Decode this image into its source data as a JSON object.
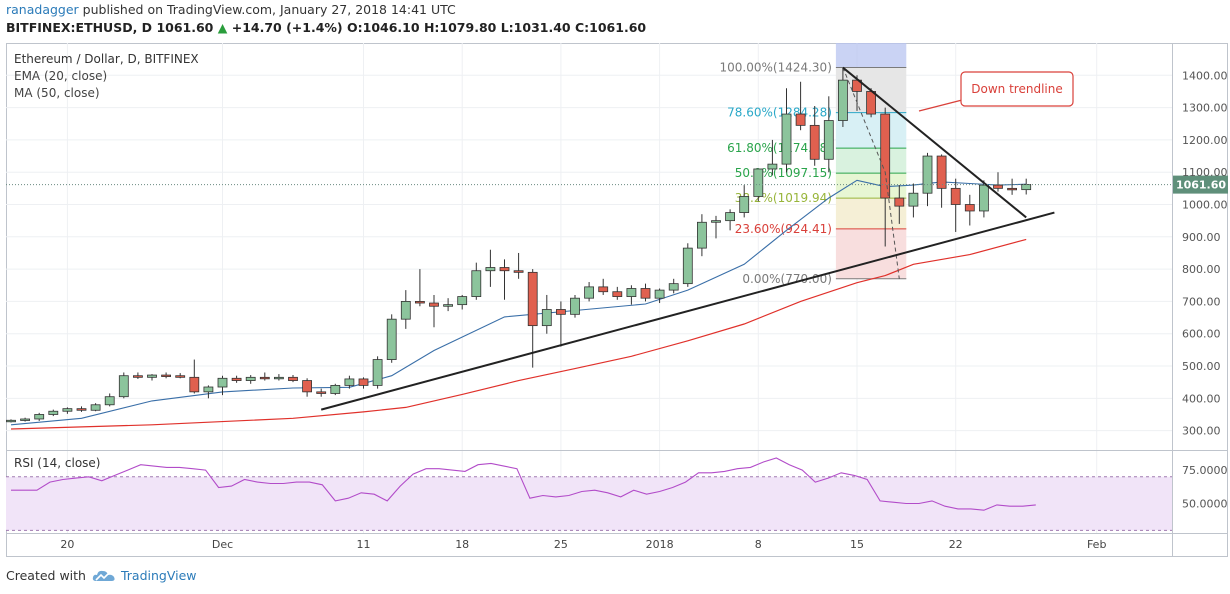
{
  "header": {
    "author": "ranadagger",
    "published": "published on TradingView.com, January 27, 2018 14:41 UTC"
  },
  "ohlc": {
    "symbol": "BITFINEX:ETHUSD, D",
    "price": "1061.60",
    "change_arrow": "▲",
    "change": "+14.70 (+1.4%)",
    "o_label": "O:",
    "o": "1046.10",
    "h_label": "H:",
    "h": "1079.80",
    "l_label": "L:",
    "l": "1031.40",
    "c_label": "C:",
    "c": "1061.60"
  },
  "footer": {
    "created_with": "Created with",
    "brand": "TradingView",
    "logo_icon": "cloud-logo-icon"
  },
  "chart_data": [
    {
      "type": "candlestick",
      "title": "Ethereum / Dollar, D, BITFINEX",
      "indicators": [
        "EMA (20, close)",
        "MA (50, close)"
      ],
      "ylim": [
        240,
        1500
      ],
      "y_ticks": [
        1400,
        1300,
        1200,
        1100,
        1000,
        900,
        800,
        700,
        600,
        500,
        400,
        300
      ],
      "y_tick_labels": [
        "1400.00",
        "1300.00",
        "1200.00",
        "1100.00",
        "1000.00",
        "900.00",
        "800.00",
        "700.00",
        "600.00",
        "500.00",
        "400.00",
        "300.00"
      ],
      "x_tick_labels": [
        {
          "label": "20",
          "day": 4
        },
        {
          "label": "Dec",
          "day": 15
        },
        {
          "label": "11",
          "day": 25
        },
        {
          "label": "18",
          "day": 32
        },
        {
          "label": "25",
          "day": 39
        },
        {
          "label": "2018",
          "day": 46
        },
        {
          "label": "8",
          "day": 53
        },
        {
          "label": "15",
          "day": 60
        },
        {
          "label": "22",
          "day": 67
        },
        {
          "label": "Feb",
          "day": 77
        }
      ],
      "last_price_label": "1061.60",
      "last_price": 1061.6,
      "candles": [
        {
          "o": 330,
          "h": 335,
          "l": 325,
          "c": 332
        },
        {
          "o": 332,
          "h": 340,
          "l": 328,
          "c": 336
        },
        {
          "o": 336,
          "h": 355,
          "l": 330,
          "c": 350
        },
        {
          "o": 350,
          "h": 365,
          "l": 345,
          "c": 360
        },
        {
          "o": 360,
          "h": 372,
          "l": 352,
          "c": 368
        },
        {
          "o": 368,
          "h": 375,
          "l": 358,
          "c": 363
        },
        {
          "o": 363,
          "h": 385,
          "l": 360,
          "c": 380
        },
        {
          "o": 380,
          "h": 415,
          "l": 375,
          "c": 405
        },
        {
          "o": 405,
          "h": 480,
          "l": 400,
          "c": 470
        },
        {
          "o": 470,
          "h": 480,
          "l": 460,
          "c": 465
        },
        {
          "o": 465,
          "h": 475,
          "l": 455,
          "c": 472
        },
        {
          "o": 472,
          "h": 480,
          "l": 462,
          "c": 470
        },
        {
          "o": 470,
          "h": 478,
          "l": 462,
          "c": 465
        },
        {
          "o": 465,
          "h": 520,
          "l": 415,
          "c": 420
        },
        {
          "o": 420,
          "h": 440,
          "l": 400,
          "c": 435
        },
        {
          "o": 435,
          "h": 470,
          "l": 410,
          "c": 462
        },
        {
          "o": 462,
          "h": 470,
          "l": 448,
          "c": 455
        },
        {
          "o": 455,
          "h": 472,
          "l": 445,
          "c": 465
        },
        {
          "o": 465,
          "h": 480,
          "l": 455,
          "c": 463
        },
        {
          "o": 463,
          "h": 475,
          "l": 455,
          "c": 465
        },
        {
          "o": 465,
          "h": 472,
          "l": 450,
          "c": 455
        },
        {
          "o": 455,
          "h": 462,
          "l": 405,
          "c": 420
        },
        {
          "o": 420,
          "h": 430,
          "l": 405,
          "c": 415
        },
        {
          "o": 415,
          "h": 445,
          "l": 410,
          "c": 440
        },
        {
          "o": 440,
          "h": 470,
          "l": 430,
          "c": 460
        },
        {
          "o": 460,
          "h": 465,
          "l": 430,
          "c": 440
        },
        {
          "o": 440,
          "h": 530,
          "l": 430,
          "c": 520
        },
        {
          "o": 520,
          "h": 660,
          "l": 510,
          "c": 645
        },
        {
          "o": 645,
          "h": 735,
          "l": 615,
          "c": 700
        },
        {
          "o": 700,
          "h": 800,
          "l": 685,
          "c": 695
        },
        {
          "o": 695,
          "h": 720,
          "l": 620,
          "c": 685
        },
        {
          "o": 685,
          "h": 710,
          "l": 670,
          "c": 690
        },
        {
          "o": 690,
          "h": 720,
          "l": 675,
          "c": 715
        },
        {
          "o": 715,
          "h": 820,
          "l": 705,
          "c": 795
        },
        {
          "o": 795,
          "h": 860,
          "l": 745,
          "c": 805
        },
        {
          "o": 805,
          "h": 830,
          "l": 705,
          "c": 795
        },
        {
          "o": 795,
          "h": 850,
          "l": 770,
          "c": 790
        },
        {
          "o": 790,
          "h": 800,
          "l": 495,
          "c": 625
        },
        {
          "o": 625,
          "h": 720,
          "l": 600,
          "c": 675
        },
        {
          "o": 675,
          "h": 700,
          "l": 560,
          "c": 660
        },
        {
          "o": 660,
          "h": 720,
          "l": 650,
          "c": 710
        },
        {
          "o": 710,
          "h": 760,
          "l": 700,
          "c": 745
        },
        {
          "o": 745,
          "h": 770,
          "l": 720,
          "c": 730
        },
        {
          "o": 730,
          "h": 745,
          "l": 705,
          "c": 715
        },
        {
          "o": 715,
          "h": 750,
          "l": 690,
          "c": 740
        },
        {
          "o": 740,
          "h": 755,
          "l": 700,
          "c": 710
        },
        {
          "o": 710,
          "h": 740,
          "l": 695,
          "c": 735
        },
        {
          "o": 735,
          "h": 770,
          "l": 725,
          "c": 755
        },
        {
          "o": 755,
          "h": 880,
          "l": 745,
          "c": 865
        },
        {
          "o": 865,
          "h": 970,
          "l": 840,
          "c": 945
        },
        {
          "o": 945,
          "h": 965,
          "l": 895,
          "c": 950
        },
        {
          "o": 950,
          "h": 985,
          "l": 920,
          "c": 975
        },
        {
          "o": 975,
          "h": 1060,
          "l": 960,
          "c": 1025
        },
        {
          "o": 1025,
          "h": 1110,
          "l": 1010,
          "c": 1110
        },
        {
          "o": 1110,
          "h": 1200,
          "l": 1090,
          "c": 1125
        },
        {
          "o": 1125,
          "h": 1360,
          "l": 1100,
          "c": 1280
        },
        {
          "o": 1280,
          "h": 1380,
          "l": 1230,
          "c": 1245
        },
        {
          "o": 1245,
          "h": 1305,
          "l": 1120,
          "c": 1140
        },
        {
          "o": 1140,
          "h": 1335,
          "l": 1100,
          "c": 1260
        },
        {
          "o": 1260,
          "h": 1424,
          "l": 1240,
          "c": 1385
        },
        {
          "o": 1385,
          "h": 1400,
          "l": 1290,
          "c": 1350
        },
        {
          "o": 1350,
          "h": 1360,
          "l": 1270,
          "c": 1280
        },
        {
          "o": 1280,
          "h": 1300,
          "l": 870,
          "c": 1020
        },
        {
          "o": 1020,
          "h": 1060,
          "l": 940,
          "c": 995
        },
        {
          "o": 995,
          "h": 1065,
          "l": 960,
          "c": 1035
        },
        {
          "o": 1035,
          "h": 1160,
          "l": 995,
          "c": 1150
        },
        {
          "o": 1150,
          "h": 1155,
          "l": 990,
          "c": 1050
        },
        {
          "o": 1050,
          "h": 1080,
          "l": 915,
          "c": 1000
        },
        {
          "o": 1000,
          "h": 1030,
          "l": 935,
          "c": 980
        },
        {
          "o": 980,
          "h": 1075,
          "l": 960,
          "c": 1060
        },
        {
          "o": 1060,
          "h": 1100,
          "l": 1040,
          "c": 1050
        },
        {
          "o": 1050,
          "h": 1080,
          "l": 1030,
          "c": 1046
        },
        {
          "o": 1046,
          "h": 1080,
          "l": 1031,
          "c": 1062
        }
      ],
      "ema20": [
        {
          "day": 0,
          "v": 318
        },
        {
          "day": 5,
          "v": 338
        },
        {
          "day": 10,
          "v": 392
        },
        {
          "day": 15,
          "v": 420
        },
        {
          "day": 20,
          "v": 432
        },
        {
          "day": 24,
          "v": 434
        },
        {
          "day": 27,
          "v": 470
        },
        {
          "day": 30,
          "v": 548
        },
        {
          "day": 35,
          "v": 652
        },
        {
          "day": 40,
          "v": 672
        },
        {
          "day": 45,
          "v": 692
        },
        {
          "day": 48,
          "v": 735
        },
        {
          "day": 52,
          "v": 815
        },
        {
          "day": 55,
          "v": 920
        },
        {
          "day": 58,
          "v": 1020
        },
        {
          "day": 60,
          "v": 1075
        },
        {
          "day": 62,
          "v": 1055
        },
        {
          "day": 64,
          "v": 1060
        },
        {
          "day": 66,
          "v": 1070
        },
        {
          "day": 68,
          "v": 1065
        },
        {
          "day": 70,
          "v": 1060
        },
        {
          "day": 72,
          "v": 1063
        }
      ],
      "ma50": [
        {
          "day": 0,
          "v": 305
        },
        {
          "day": 10,
          "v": 318
        },
        {
          "day": 20,
          "v": 338
        },
        {
          "day": 25,
          "v": 358
        },
        {
          "day": 28,
          "v": 372
        },
        {
          "day": 32,
          "v": 412
        },
        {
          "day": 36,
          "v": 455
        },
        {
          "day": 40,
          "v": 492
        },
        {
          "day": 44,
          "v": 530
        },
        {
          "day": 48,
          "v": 578
        },
        {
          "day": 52,
          "v": 630
        },
        {
          "day": 56,
          "v": 700
        },
        {
          "day": 60,
          "v": 758
        },
        {
          "day": 62,
          "v": 780
        },
        {
          "day": 64,
          "v": 815
        },
        {
          "day": 68,
          "v": 845
        },
        {
          "day": 72,
          "v": 892
        }
      ],
      "fibonacci": {
        "from_day": 59,
        "to_day": 63,
        "levels": [
          {
            "pct": "100.00%",
            "price": 1424.3,
            "label": "100.00%(1424.30)",
            "color": "#7a7a7a",
            "zone": "#e6e6e6"
          },
          {
            "pct": "78.60%",
            "price": 1284.28,
            "label": "78.60%(1284.28)",
            "color": "#2aa8c8",
            "zone": "#d8f0f5"
          },
          {
            "pct": "61.80%",
            "price": 1174.38,
            "label": "61.80%(1174.38)",
            "color": "#2aa44b",
            "zone": "#d9f2df"
          },
          {
            "pct": "50.0%",
            "price": 1097.15,
            "label": "50.0%(1097.15)",
            "color": "#2aa44b",
            "zone": "#e7f6d3"
          },
          {
            "pct": "38.2%",
            "price": 1019.94,
            "label": "38.2%(1019.94)",
            "color": "#98b53a",
            "zone": "#f5efd6"
          },
          {
            "pct": "23.60%",
            "price": 924.41,
            "label": "23.60%(924.41)",
            "color": "#d9403a",
            "zone": "#f8dede"
          },
          {
            "pct": "0.00%",
            "price": 770.0,
            "label": "0.00%(770.00)",
            "color": "#7a7a7a",
            "zone": ""
          }
        ]
      },
      "trendlines": [
        {
          "name": "down",
          "from": {
            "day": 59,
            "v": 1424
          },
          "to": {
            "day": 72,
            "v": 960
          }
        },
        {
          "name": "up",
          "from": {
            "day": 22,
            "v": 365
          },
          "to": {
            "day": 74,
            "v": 975
          }
        }
      ],
      "retrace_path": [
        {
          "day": 59,
          "v": 1424
        },
        {
          "day": 62,
          "v": 1100
        },
        {
          "day": 63,
          "v": 770
        }
      ],
      "annotation": "Down trendline"
    },
    {
      "type": "line",
      "title": "RSI (14, close)",
      "ylim": [
        28,
        90
      ],
      "y_ticks": [
        75,
        50
      ],
      "y_tick_labels": [
        "75.0000",
        "50.0000"
      ],
      "band": [
        30,
        70
      ],
      "values": [
        60,
        60,
        60,
        66,
        68,
        69,
        70,
        67,
        71,
        75,
        79,
        78,
        77,
        77,
        76,
        75,
        62,
        63,
        68,
        66,
        65,
        65,
        66,
        66,
        64,
        52,
        54,
        58,
        57,
        52,
        63,
        72,
        76,
        76,
        75,
        74,
        79,
        80,
        78,
        76,
        54,
        56,
        55,
        56,
        59,
        60,
        58,
        55,
        60,
        57,
        59,
        62,
        66,
        73,
        73,
        74,
        76,
        77,
        81,
        84,
        79,
        75,
        66,
        69,
        73,
        71,
        68,
        52,
        51,
        50,
        50,
        52,
        48,
        46,
        46,
        45,
        49,
        48,
        48,
        49
      ]
    }
  ]
}
